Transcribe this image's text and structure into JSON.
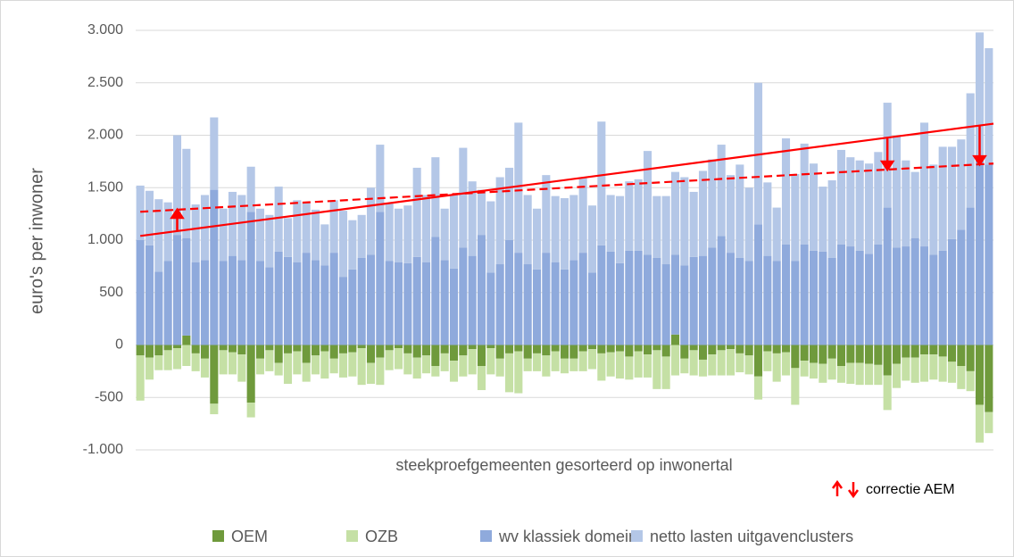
{
  "chart_data": {
    "type": "stacked_bar",
    "y_axis_label": "euro's per inwoner",
    "x_axis_label": "steekproefgemeenten gesorteerd op inwonertal",
    "annotation": "correctie AEM",
    "ylim": [
      -1000,
      3000
    ],
    "yticks": [
      {
        "value": 3000,
        "label": "3.000"
      },
      {
        "value": 2500,
        "label": "2.500"
      },
      {
        "value": 2000,
        "label": "2.000"
      },
      {
        "value": 1500,
        "label": "1.500"
      },
      {
        "value": 1000,
        "label": "1.000"
      },
      500,
      0,
      -500,
      {
        "value": -1000,
        "label": "-1.000"
      }
    ],
    "grid": true,
    "legend": "bottom",
    "series": [
      {
        "name": "OEM",
        "color": "#6f9a3c",
        "values": [
          -100,
          -120,
          -100,
          -50,
          -30,
          90,
          -80,
          -130,
          -560,
          -50,
          -70,
          -90,
          -550,
          -130,
          -50,
          -170,
          -80,
          -60,
          -170,
          -100,
          -60,
          -130,
          -80,
          -70,
          -30,
          -170,
          -120,
          -50,
          -30,
          -80,
          -120,
          -100,
          -200,
          -80,
          -150,
          -100,
          -40,
          -200,
          -30,
          -130,
          -80,
          -60,
          -130,
          -80,
          -100,
          -60,
          -130,
          -130,
          -60,
          -40,
          -80,
          -70,
          -60,
          -110,
          -60,
          -90,
          -50,
          -110,
          100,
          -130,
          -50,
          -140,
          -90,
          -50,
          -40,
          -80,
          -100,
          -300,
          -60,
          -80,
          -70,
          -220,
          -150,
          -170,
          -180,
          -130,
          -200,
          -170,
          -170,
          -180,
          -190,
          -290,
          -180,
          -120,
          -120,
          -90,
          -90,
          -110,
          -160,
          -200,
          -250,
          -570,
          -640
        ]
      },
      {
        "name": "OZB",
        "color": "#c5e0a5",
        "values": [
          -430,
          -210,
          -140,
          -190,
          -200,
          -200,
          -170,
          -180,
          -100,
          -230,
          -210,
          -260,
          -140,
          -150,
          -200,
          -120,
          -290,
          -220,
          -180,
          -180,
          -260,
          -140,
          -230,
          -230,
          -350,
          -200,
          -260,
          -190,
          -200,
          -200,
          -200,
          -170,
          -100,
          -170,
          -200,
          -200,
          -240,
          -230,
          -250,
          -170,
          -370,
          -400,
          -120,
          -170,
          -200,
          -190,
          -140,
          -120,
          -190,
          -190,
          -260,
          -230,
          -260,
          -220,
          -250,
          -220,
          -370,
          -310,
          -290,
          -140,
          -240,
          -160,
          -200,
          -240,
          -250,
          -180,
          -180,
          -220,
          -190,
          -270,
          -220,
          -350,
          -150,
          -150,
          -180,
          -200,
          -160,
          -200,
          -210,
          -200,
          -190,
          -330,
          -230,
          -220,
          -240,
          -260,
          -240,
          -240,
          -200,
          -220,
          -190,
          -360,
          -200
        ]
      },
      {
        "name": "wv klassiek domein",
        "color": "#8faadc",
        "values": [
          1000,
          950,
          700,
          800,
          1050,
          930,
          790,
          810,
          1480,
          800,
          850,
          810,
          1270,
          800,
          740,
          890,
          840,
          790,
          880,
          810,
          760,
          880,
          650,
          720,
          830,
          860,
          1270,
          800,
          790,
          780,
          840,
          790,
          1030,
          810,
          730,
          930,
          850,
          1050,
          690,
          770,
          1000,
          880,
          770,
          720,
          880,
          790,
          720,
          810,
          880,
          690,
          950,
          890,
          780,
          900,
          900,
          860,
          830,
          770,
          760,
          760,
          840,
          850,
          930,
          1040,
          880,
          830,
          800,
          1150,
          850,
          800,
          960,
          800,
          960,
          900,
          890,
          830,
          960,
          940,
          900,
          870,
          960,
          1310,
          930,
          940,
          1020,
          940,
          860,
          900,
          1010,
          1100,
          1310,
          1760,
          1720
        ]
      },
      {
        "name": "netto lasten uitgavenclusters",
        "color": "#b4c7e7",
        "values": [
          520,
          520,
          690,
          560,
          950,
          850,
          550,
          620,
          690,
          500,
          610,
          620,
          430,
          500,
          500,
          620,
          370,
          590,
          480,
          480,
          390,
          500,
          630,
          470,
          410,
          640,
          640,
          550,
          510,
          550,
          850,
          640,
          760,
          490,
          700,
          950,
          710,
          430,
          680,
          830,
          690,
          1240,
          660,
          580,
          740,
          630,
          680,
          620,
          710,
          640,
          1180,
          540,
          640,
          660,
          680,
          990,
          590,
          650,
          790,
          840,
          620,
          810,
          840,
          870,
          740,
          890,
          700,
          1350,
          700,
          510,
          1010,
          830,
          960,
          830,
          620,
          740,
          900,
          850,
          860,
          860,
          880,
          1000,
          1060,
          820,
          630,
          1180,
          860,
          990,
          880,
          860,
          1090,
          1220,
          1110
        ]
      }
    ],
    "trend_lines": [
      {
        "color": "#ff0000",
        "dashed": false,
        "values": [
          1040,
          2110
        ]
      },
      {
        "color": "#ff0000",
        "dashed": true,
        "values": [
          1270,
          1730
        ]
      }
    ],
    "correction_arrows": [
      4,
      81,
      91
    ]
  }
}
